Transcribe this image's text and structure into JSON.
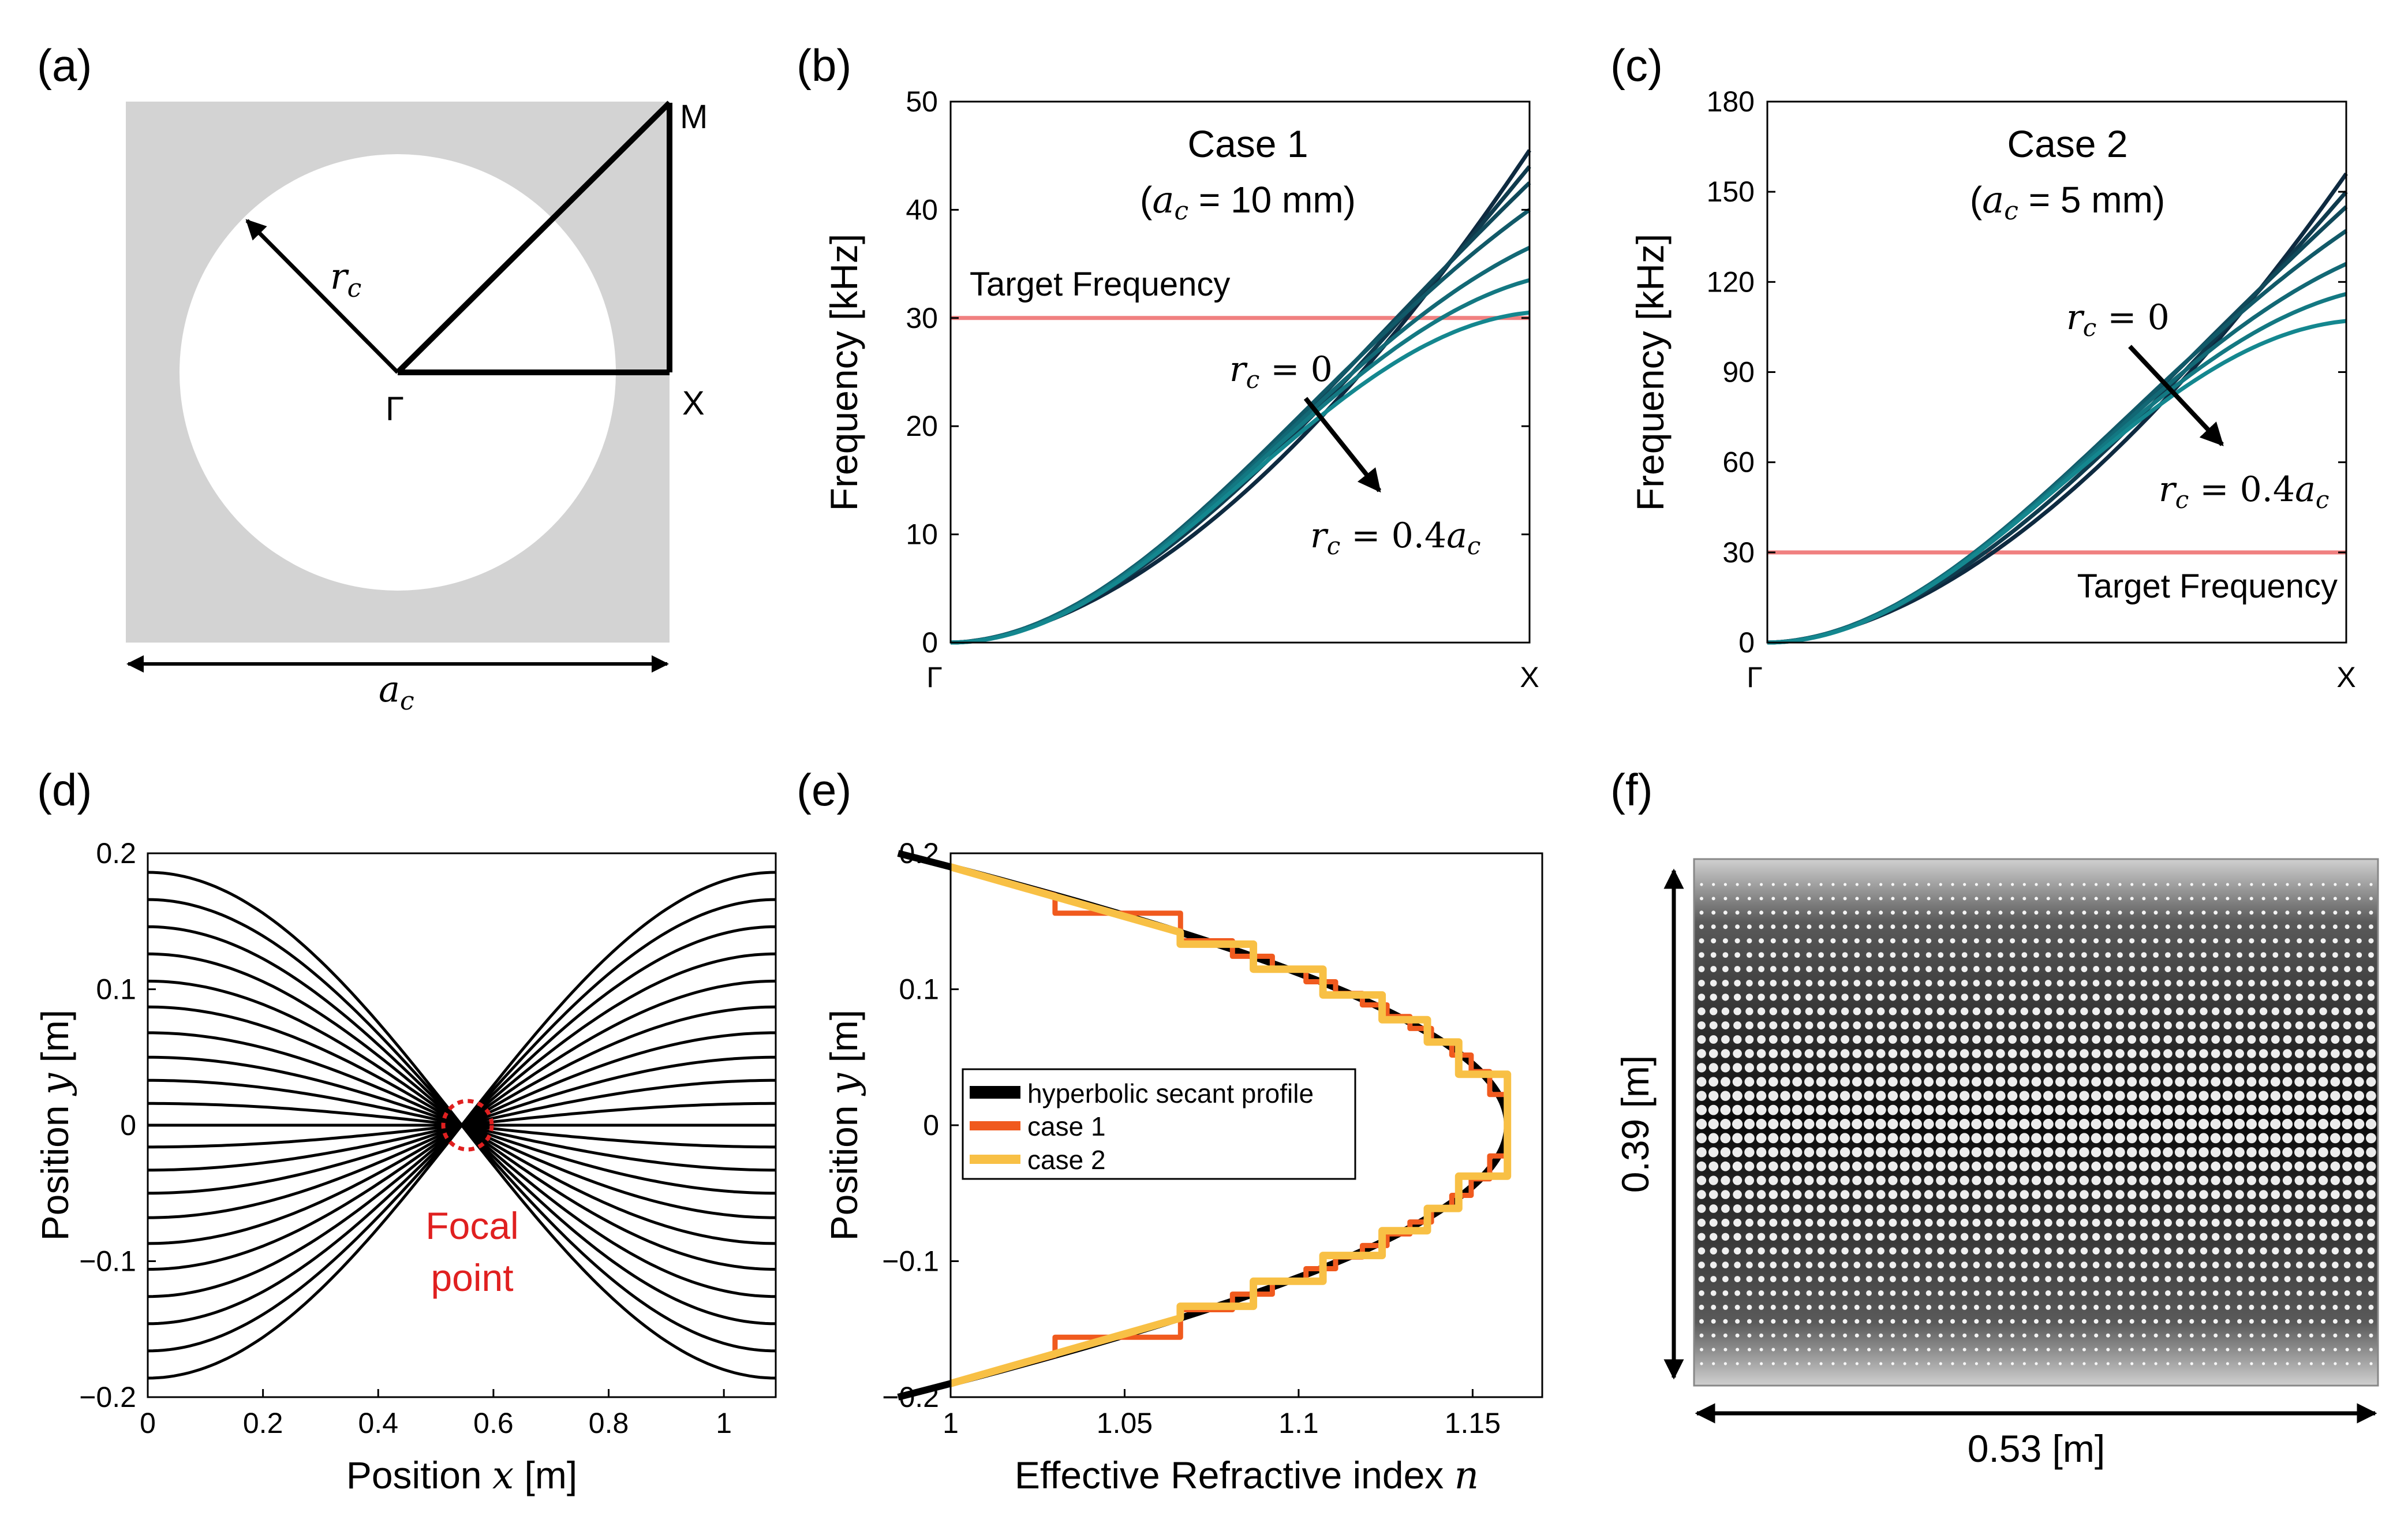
{
  "colors": {
    "teal_light": "#14878F",
    "teal_dark": "#0E2A40",
    "target_line": "#F08080",
    "focal_red": "#E02020",
    "case1": "#F05A1E",
    "case2": "#F8C045",
    "cell_gray": "#D3D3D3"
  },
  "panel_a": {
    "label": "(a)",
    "vertices": {
      "M": "M",
      "X": "X",
      "Gamma": "Γ"
    },
    "r_label": "r",
    "r_sub": "c",
    "a_label": "a",
    "a_sub": "c",
    "r_ratio": 0.4
  },
  "panel_f": {
    "label": "(f)",
    "height_label": "0.39 [m]",
    "width_label": "0.53 [m]",
    "cols": 57,
    "rows": 35
  },
  "chart_data": [
    {
      "panel": "(b)",
      "type": "line",
      "title": "Case 1",
      "subtitle_var": "a",
      "subtitle_sub": "c",
      "subtitle_value": " = 10 mm)",
      "subtitle_open": "(",
      "ylabel": "Frequency [kHz]",
      "xlabel": "",
      "ylim": [
        0,
        50
      ],
      "yticks": [
        "0",
        "10",
        "20",
        "30",
        "40",
        "50"
      ],
      "xticks": [
        "Γ",
        "X"
      ],
      "target_frequency": 30,
      "target_label": "Target Frequency",
      "arrow_start_label_var": "r",
      "arrow_start_label_sub": "c",
      "arrow_start_label_val": " = 0",
      "arrow_end_label_val": " = 0.4",
      "arrow_end_label_var2": "a",
      "series_end_values": [
        45.5,
        44.0,
        42.5,
        40.0,
        36.5,
        33.5,
        30.5
      ]
    },
    {
      "panel": "(c)",
      "type": "line",
      "title": "Case 2",
      "subtitle_var": "a",
      "subtitle_sub": "c",
      "subtitle_value": " = 5 mm)",
      "subtitle_open": "(",
      "ylabel": "Frequency [kHz]",
      "xlabel": "",
      "ylim": [
        0,
        180
      ],
      "yticks": [
        "0",
        "30",
        "60",
        "90",
        "120",
        "150",
        "180"
      ],
      "xticks": [
        "Γ",
        "X"
      ],
      "target_frequency": 30,
      "target_label": "Target Frequency",
      "arrow_start_label_var": "r",
      "arrow_start_label_sub": "c",
      "arrow_start_label_val": " = 0",
      "arrow_end_label_val": " = 0.4",
      "arrow_end_label_var2": "a",
      "series_end_values": [
        156,
        150,
        145,
        137,
        126,
        116,
        107
      ]
    },
    {
      "panel": "(d)",
      "type": "line",
      "title": "",
      "ylabel_prefix": "Position ",
      "ylabel_var": "y",
      "ylabel_suffix": " [m]",
      "xlabel_prefix": "Position ",
      "xlabel_var": "x",
      "xlabel_suffix": " [m]",
      "xlim": [
        0,
        1.09
      ],
      "ylim": [
        -0.2,
        0.2
      ],
      "xticks": [
        "0",
        "0.2",
        "0.4",
        "0.6",
        "0.8",
        "1"
      ],
      "yticks": [
        "−0.2",
        "−0.1",
        "0",
        "0.1",
        "0.2"
      ],
      "focal_x": 0.545,
      "focal_label_1": "Focal",
      "focal_label_2": "point",
      "ray_start_positions": [
        -0.186,
        -0.166,
        -0.146,
        -0.126,
        -0.106,
        -0.087,
        -0.068,
        -0.05,
        -0.033,
        -0.016,
        0.0,
        0.016,
        0.033,
        0.05,
        0.068,
        0.087,
        0.106,
        0.126,
        0.146,
        0.166,
        0.186
      ]
    },
    {
      "panel": "(e)",
      "type": "line",
      "title": "",
      "ylabel_prefix": "Position ",
      "ylabel_var": "y",
      "ylabel_suffix": " [m]",
      "xlabel_prefix": "Effective Refractive index ",
      "xlabel_var": "n",
      "xlim": [
        1,
        1.17
      ],
      "ylim": [
        -0.2,
        0.2
      ],
      "xticks": [
        "1",
        "1.05",
        "1.1",
        "1.15"
      ],
      "yticks": [
        "−0.2",
        "−0.1",
        "0",
        "0.1",
        "0.2"
      ],
      "n0": 1.16,
      "legend": [
        "hyperbolic secant profile",
        "case 1",
        "case 2"
      ],
      "case2_steps_n": [
        1.066,
        1.087,
        1.107,
        1.124,
        1.137,
        1.146,
        1.16
      ]
    }
  ]
}
